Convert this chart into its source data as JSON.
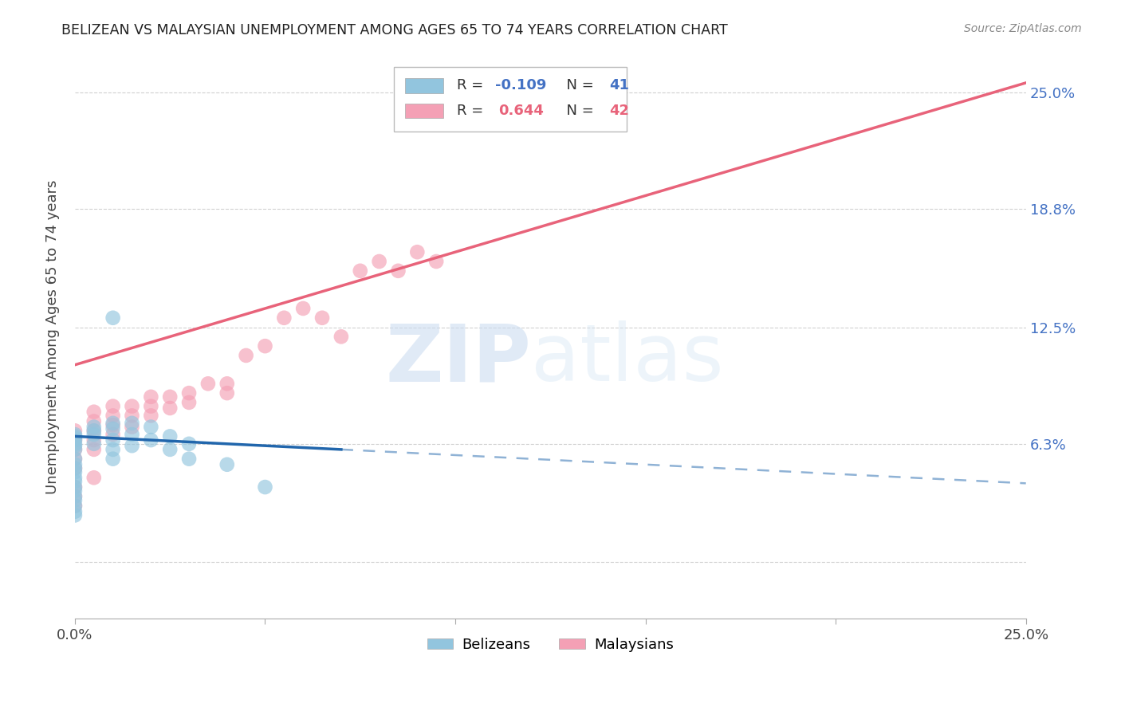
{
  "title": "BELIZEAN VS MALAYSIAN UNEMPLOYMENT AMONG AGES 65 TO 74 YEARS CORRELATION CHART",
  "source": "Source: ZipAtlas.com",
  "ylabel": "Unemployment Among Ages 65 to 74 years",
  "xlim": [
    0.0,
    0.25
  ],
  "ylim": [
    -0.03,
    0.27
  ],
  "belizean_color": "#92c5de",
  "malaysian_color": "#f4a0b5",
  "belizean_line_color": "#2166ac",
  "malaysian_line_color": "#e8637a",
  "belizean_R": -0.109,
  "belizean_N": 41,
  "malaysian_R": 0.644,
  "malaysian_N": 42,
  "watermark_zip": "ZIP",
  "watermark_atlas": "atlas",
  "bel_x": [
    0.0,
    0.0,
    0.0,
    0.0,
    0.0,
    0.0,
    0.0,
    0.0,
    0.0,
    0.0,
    0.0,
    0.0,
    0.0,
    0.0,
    0.0,
    0.0,
    0.0,
    0.0,
    0.0,
    0.0,
    0.005,
    0.005,
    0.005,
    0.005,
    0.01,
    0.01,
    0.01,
    0.01,
    0.01,
    0.015,
    0.015,
    0.015,
    0.02,
    0.02,
    0.025,
    0.025,
    0.03,
    0.03,
    0.04,
    0.05,
    0.01
  ],
  "bel_y": [
    0.06,
    0.062,
    0.063,
    0.065,
    0.066,
    0.067,
    0.068,
    0.055,
    0.052,
    0.05,
    0.048,
    0.045,
    0.043,
    0.04,
    0.038,
    0.035,
    0.033,
    0.03,
    0.027,
    0.025,
    0.07,
    0.072,
    0.068,
    0.063,
    0.074,
    0.071,
    0.065,
    0.06,
    0.055,
    0.074,
    0.068,
    0.062,
    0.072,
    0.065,
    0.067,
    0.06,
    0.063,
    0.055,
    0.052,
    0.04,
    0.13
  ],
  "mal_x": [
    0.0,
    0.0,
    0.0,
    0.0,
    0.0,
    0.0,
    0.0,
    0.0,
    0.005,
    0.005,
    0.005,
    0.005,
    0.005,
    0.005,
    0.01,
    0.01,
    0.01,
    0.01,
    0.015,
    0.015,
    0.015,
    0.02,
    0.02,
    0.02,
    0.025,
    0.025,
    0.03,
    0.03,
    0.035,
    0.04,
    0.04,
    0.045,
    0.05,
    0.055,
    0.06,
    0.065,
    0.07,
    0.075,
    0.08,
    0.085,
    0.09,
    0.095
  ],
  "mal_y": [
    0.05,
    0.055,
    0.06,
    0.065,
    0.07,
    0.04,
    0.035,
    0.03,
    0.06,
    0.065,
    0.07,
    0.075,
    0.08,
    0.045,
    0.068,
    0.073,
    0.078,
    0.083,
    0.072,
    0.078,
    0.083,
    0.078,
    0.083,
    0.088,
    0.082,
    0.088,
    0.085,
    0.09,
    0.095,
    0.09,
    0.095,
    0.11,
    0.115,
    0.13,
    0.135,
    0.13,
    0.12,
    0.155,
    0.16,
    0.155,
    0.165,
    0.16
  ],
  "mal_line_x0": 0.0,
  "mal_line_y0": 0.105,
  "mal_line_x1": 0.25,
  "mal_line_y1": 0.255,
  "bel_line_x0": 0.0,
  "bel_line_y0": 0.067,
  "bel_line_x1": 0.07,
  "bel_line_y1": 0.06
}
